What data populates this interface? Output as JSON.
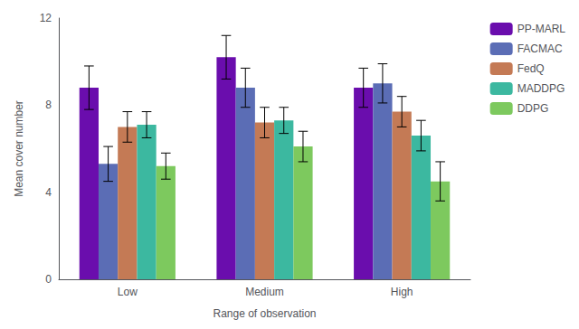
{
  "chart_data": {
    "type": "bar",
    "xlabel": "Range of observation",
    "ylabel": "Mean cover number",
    "categories": [
      "Low",
      "Medium",
      "High"
    ],
    "series": [
      {
        "name": "PP-MARL",
        "color": "#6A0DAD",
        "values": [
          8.8,
          10.2,
          8.8
        ],
        "errors": [
          1.0,
          1.0,
          0.9
        ]
      },
      {
        "name": "FACMAC",
        "color": "#5B6DB5",
        "values": [
          5.3,
          8.8,
          9.0
        ],
        "errors": [
          0.8,
          0.9,
          0.9
        ]
      },
      {
        "name": "FedQ",
        "color": "#C47A55",
        "values": [
          7.0,
          7.2,
          7.7
        ],
        "errors": [
          0.7,
          0.7,
          0.7
        ]
      },
      {
        "name": "MADDPG",
        "color": "#3CB8A0",
        "values": [
          7.1,
          7.3,
          6.6
        ],
        "errors": [
          0.6,
          0.6,
          0.7
        ]
      },
      {
        "name": "DDPG",
        "color": "#7DC95E",
        "values": [
          5.2,
          6.1,
          4.5
        ],
        "errors": [
          0.6,
          0.7,
          0.9
        ]
      }
    ],
    "ylim": [
      0,
      12
    ],
    "yticks": [
      0,
      4,
      8,
      12
    ],
    "grid": false,
    "legend": "right"
  }
}
